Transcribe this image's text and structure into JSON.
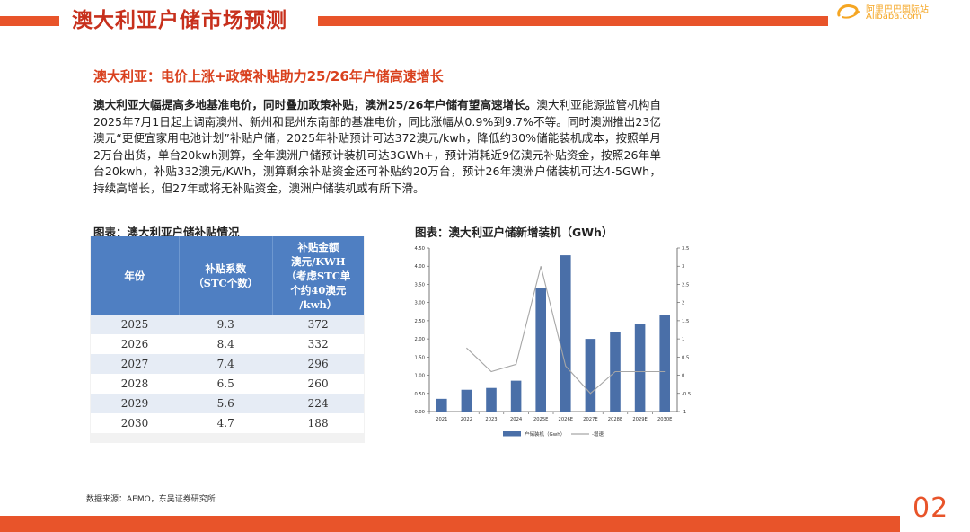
{
  "header": {
    "title": "澳大利亚户储市场预测",
    "logo_cn": "阿里巴巴国际站",
    "logo_en": "Alibaba.com"
  },
  "section": {
    "subtitle": "澳大利亚：电价上涨+政策补贴助力25/26年户储高速增长",
    "lead": "澳大利亚大幅提高多地基准电价，同时叠加政策补贴，澳洲25/26年户储有望高速增长。",
    "body": "澳大利亚能源监管机构自2025年7月1日起上调南澳州、新州和昆州东南部的基准电价，同比涨幅从0.9%到9.7%不等。同时澳洲推出23亿澳元“更便宜家用电池计划”补贴户储，2025年补贴预计可达372澳元/kwh，降低约30%储能装机成本，按照单月2万台出货，单台20kwh测算，全年澳洲户储预计装机可达3GWh+，预计消耗近9亿澳元补贴资金，按照26年单台20kwh，补贴332澳元/KWh，测算剩余补贴资金还可补贴约20万台，预计26年澳洲户储装机可达4-5GWh，持续高增长，但27年或将无补贴资金，澳洲户储装机或有所下滑。"
  },
  "table": {
    "caption": "图表：澳大利亚户储补贴情况",
    "headers": {
      "year": "年份",
      "coef_line1": "补贴系数",
      "coef_line2": "（STC个数）",
      "amt_line1": "补贴金额",
      "amt_line2": "澳元/KWH",
      "amt_line3": "（考虑STC单",
      "amt_line4": "个约40澳元",
      "amt_line5": "/kwh）"
    },
    "rows": [
      {
        "year": "2025",
        "coef": "9.3",
        "amount": "372"
      },
      {
        "year": "2026",
        "coef": "8.4",
        "amount": "332"
      },
      {
        "year": "2027",
        "coef": "7.4",
        "amount": "296"
      },
      {
        "year": "2028",
        "coef": "6.5",
        "amount": "260"
      },
      {
        "year": "2029",
        "coef": "5.6",
        "amount": "224"
      },
      {
        "year": "2030",
        "coef": "4.7",
        "amount": "188"
      }
    ]
  },
  "chart_caption": "图表：澳大利亚户储新增装机（GWh）",
  "chart_data": {
    "type": "bar",
    "title": "澳大利亚户储新增装机（GWh）",
    "categories": [
      "2021",
      "2022",
      "2023",
      "2024",
      "2025E",
      "2026E",
      "2027E",
      "2028E",
      "2029E",
      "2030E"
    ],
    "series": [
      {
        "name": "户储装机（Gwh）",
        "type": "bar",
        "axis": "left",
        "color": "#4a6fa8",
        "values": [
          0.35,
          0.6,
          0.65,
          0.85,
          3.4,
          4.3,
          2.0,
          2.2,
          2.42,
          2.66
        ]
      },
      {
        "name": "-增速",
        "type": "line",
        "axis": "right",
        "color": "#a6a6a6",
        "values": [
          null,
          0.75,
          0.1,
          0.3,
          3.0,
          0.25,
          -0.5,
          0.1,
          0.1,
          0.1
        ]
      }
    ],
    "ylim": [
      0,
      4.5
    ],
    "y_ticks": [
      "0.00",
      "0.50",
      "1.00",
      "1.50",
      "2.00",
      "2.50",
      "3.00",
      "3.50",
      "4.00",
      "4.50"
    ],
    "y2lim": [
      -1,
      3.5
    ],
    "y2_ticks": [
      "-1",
      "-0.5",
      "0",
      "0.5",
      "1",
      "1.5",
      "2",
      "2.5",
      "3",
      "3.5"
    ],
    "legend_position": "bottom"
  },
  "footer": {
    "source": "数据来源：AEMO，东吴证券研究所",
    "page": "02"
  },
  "colors": {
    "accent": "#e8542a",
    "title_red": "#c7301c",
    "table_header": "#4f7fc2",
    "bar": "#4a6fa8",
    "line": "#a6a6a6"
  }
}
